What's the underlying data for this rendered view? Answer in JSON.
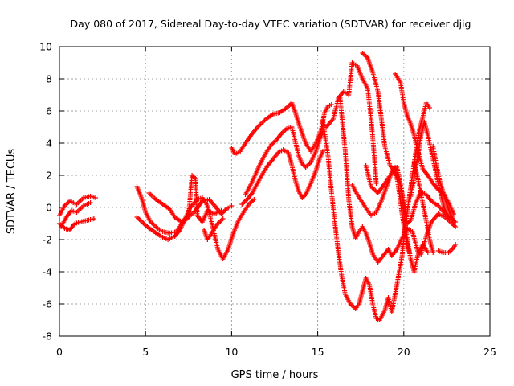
{
  "chart_data": {
    "type": "scatter",
    "title": "Day 080 of 2017, Sidereal Day-to-day VTEC variation (SDTVAR) for receiver djig",
    "xlabel": "GPS time / hours",
    "ylabel": "SDTVAR / TECUs",
    "xlim": [
      0,
      25
    ],
    "ylim": [
      -8,
      10
    ],
    "xticks": [
      "0",
      "5",
      "10",
      "15",
      "20",
      "25"
    ],
    "yticks": [
      "-8",
      "-6",
      "-4",
      "-2",
      "0",
      "2",
      "4",
      "6",
      "8",
      "10"
    ],
    "grid": true,
    "marker": "+",
    "color": "#ff0000",
    "series": [
      {
        "points": [
          [
            0.0,
            -0.5
          ],
          [
            0.3,
            0.1
          ],
          [
            0.6,
            0.4
          ],
          [
            1.0,
            0.2
          ],
          [
            1.4,
            0.6
          ],
          [
            1.8,
            0.7
          ],
          [
            2.1,
            0.6
          ]
        ]
      },
      {
        "points": [
          [
            0.0,
            -1.0
          ],
          [
            0.3,
            -1.3
          ],
          [
            0.6,
            -1.4
          ],
          [
            0.9,
            -1.0
          ],
          [
            1.2,
            -0.9
          ],
          [
            1.6,
            -0.8
          ],
          [
            2.0,
            -0.7
          ]
        ]
      },
      {
        "points": [
          [
            0.1,
            -1.2
          ],
          [
            0.4,
            -0.6
          ],
          [
            0.7,
            -0.2
          ],
          [
            1.0,
            -0.3
          ],
          [
            1.4,
            0.1
          ],
          [
            1.8,
            0.3
          ]
        ]
      },
      {
        "points": [
          [
            4.5,
            1.3
          ],
          [
            4.8,
            0.5
          ],
          [
            5.0,
            -0.3
          ],
          [
            5.3,
            -0.9
          ],
          [
            5.7,
            -1.3
          ],
          [
            6.0,
            -1.5
          ],
          [
            6.4,
            -1.6
          ],
          [
            6.8,
            -1.5
          ],
          [
            7.1,
            -1.0
          ],
          [
            7.5,
            -0.6
          ],
          [
            7.9,
            -0.2
          ],
          [
            8.3,
            0.4
          ],
          [
            8.7,
            0.5
          ],
          [
            9.1,
            0.0
          ],
          [
            9.4,
            -0.4
          ],
          [
            9.7,
            -0.1
          ],
          [
            10.0,
            0.1
          ]
        ]
      },
      {
        "points": [
          [
            4.5,
            -0.6
          ],
          [
            4.8,
            -0.9
          ],
          [
            5.1,
            -1.2
          ],
          [
            5.5,
            -1.5
          ],
          [
            5.9,
            -1.8
          ],
          [
            6.3,
            -2.0
          ],
          [
            6.7,
            -1.8
          ],
          [
            7.0,
            -1.4
          ],
          [
            7.3,
            -0.7
          ],
          [
            7.6,
            0.0
          ],
          [
            8.0,
            0.5
          ],
          [
            8.3,
            0.6
          ],
          [
            8.6,
            0.1
          ],
          [
            8.9,
            -1.2
          ],
          [
            9.2,
            -2.6
          ],
          [
            9.5,
            -3.2
          ],
          [
            9.8,
            -2.6
          ],
          [
            10.1,
            -1.6
          ],
          [
            10.4,
            -0.8
          ],
          [
            10.7,
            -0.3
          ],
          [
            11.0,
            0.2
          ],
          [
            11.3,
            0.5
          ]
        ]
      },
      {
        "points": [
          [
            5.2,
            0.9
          ],
          [
            5.6,
            0.5
          ],
          [
            6.0,
            0.2
          ],
          [
            6.4,
            -0.1
          ],
          [
            6.7,
            -0.6
          ],
          [
            7.1,
            -0.9
          ],
          [
            7.5,
            -0.5
          ],
          [
            7.7,
            2.0
          ],
          [
            7.9,
            1.8
          ],
          [
            8.0,
            -0.5
          ],
          [
            8.3,
            -0.9
          ],
          [
            8.6,
            -0.2
          ],
          [
            9.0,
            -0.4
          ],
          [
            9.4,
            -0.2
          ]
        ]
      },
      {
        "points": [
          [
            8.4,
            -1.4
          ],
          [
            8.6,
            -2.0
          ],
          [
            8.9,
            -1.5
          ],
          [
            9.2,
            -1.0
          ],
          [
            9.5,
            -0.7
          ]
        ]
      },
      {
        "points": [
          [
            10.0,
            3.7
          ],
          [
            10.2,
            3.3
          ],
          [
            10.5,
            3.5
          ],
          [
            10.8,
            4.0
          ],
          [
            11.2,
            4.6
          ],
          [
            11.6,
            5.1
          ],
          [
            12.0,
            5.5
          ],
          [
            12.4,
            5.8
          ],
          [
            12.8,
            5.9
          ],
          [
            13.2,
            6.2
          ],
          [
            13.5,
            6.5
          ],
          [
            13.7,
            5.9
          ],
          [
            14.0,
            4.9
          ],
          [
            14.3,
            4.0
          ],
          [
            14.6,
            3.5
          ],
          [
            14.9,
            4.0
          ],
          [
            15.2,
            4.8
          ],
          [
            15.4,
            5.9
          ],
          [
            15.6,
            6.3
          ],
          [
            15.8,
            6.4
          ]
        ]
      },
      {
        "points": [
          [
            10.8,
            0.8
          ],
          [
            11.1,
            1.4
          ],
          [
            11.4,
            2.1
          ],
          [
            11.7,
            2.8
          ],
          [
            12.0,
            3.4
          ],
          [
            12.3,
            3.9
          ],
          [
            12.6,
            4.2
          ],
          [
            12.9,
            4.6
          ],
          [
            13.2,
            4.9
          ],
          [
            13.5,
            5.0
          ],
          [
            13.7,
            4.1
          ],
          [
            13.9,
            3.2
          ],
          [
            14.1,
            2.7
          ],
          [
            14.3,
            2.5
          ],
          [
            14.6,
            2.8
          ],
          [
            14.9,
            3.5
          ],
          [
            15.1,
            4.2
          ],
          [
            15.3,
            4.7
          ]
        ]
      },
      {
        "points": [
          [
            10.6,
            0.2
          ],
          [
            10.9,
            0.5
          ],
          [
            11.2,
            0.9
          ],
          [
            11.5,
            1.5
          ],
          [
            11.8,
            2.1
          ],
          [
            12.1,
            2.6
          ],
          [
            12.4,
            3.0
          ],
          [
            12.7,
            3.4
          ],
          [
            13.0,
            3.6
          ],
          [
            13.3,
            3.4
          ],
          [
            13.5,
            2.6
          ],
          [
            13.7,
            1.7
          ],
          [
            13.9,
            1.0
          ],
          [
            14.1,
            0.6
          ],
          [
            14.3,
            0.8
          ],
          [
            14.6,
            1.5
          ],
          [
            14.9,
            2.3
          ],
          [
            15.1,
            3.0
          ],
          [
            15.3,
            3.5
          ]
        ]
      },
      {
        "points": [
          [
            15.5,
            5.0
          ],
          [
            15.9,
            5.5
          ],
          [
            16.2,
            6.8
          ],
          [
            16.5,
            7.2
          ],
          [
            16.8,
            7.0
          ],
          [
            17.0,
            9.0
          ],
          [
            17.3,
            8.8
          ],
          [
            17.6,
            8.0
          ],
          [
            17.9,
            7.4
          ],
          [
            18.0,
            6.5
          ],
          [
            18.1,
            5.5
          ],
          [
            18.2,
            4.3
          ],
          [
            18.3,
            3.0
          ],
          [
            18.4,
            1.5
          ]
        ]
      },
      {
        "points": [
          [
            15.3,
            5.4
          ],
          [
            15.6,
            3.2
          ],
          [
            15.8,
            1.0
          ],
          [
            16.0,
            -1.0
          ],
          [
            16.2,
            -2.8
          ],
          [
            16.4,
            -4.3
          ],
          [
            16.6,
            -5.4
          ],
          [
            16.9,
            -6.0
          ],
          [
            17.2,
            -6.3
          ],
          [
            17.4,
            -6.0
          ],
          [
            17.6,
            -5.2
          ],
          [
            17.8,
            -4.4
          ],
          [
            18.0,
            -4.8
          ],
          [
            18.2,
            -6.0
          ],
          [
            18.4,
            -6.9
          ],
          [
            18.6,
            -7.0
          ],
          [
            18.9,
            -6.4
          ],
          [
            19.1,
            -5.6
          ],
          [
            19.3,
            -6.5
          ],
          [
            19.6,
            -4.8
          ],
          [
            19.9,
            -3.0
          ],
          [
            20.1,
            -1.0
          ],
          [
            20.3,
            0.5
          ],
          [
            20.5,
            2.0
          ],
          [
            20.7,
            3.5
          ],
          [
            20.9,
            4.8
          ],
          [
            21.1,
            5.6
          ],
          [
            21.3,
            6.5
          ],
          [
            21.5,
            6.2
          ]
        ]
      },
      {
        "points": [
          [
            16.3,
            6.8
          ],
          [
            16.6,
            3.5
          ],
          [
            16.8,
            0.5
          ],
          [
            17.0,
            -1.2
          ],
          [
            17.2,
            -1.9
          ],
          [
            17.4,
            -1.5
          ],
          [
            17.6,
            -1.2
          ],
          [
            17.8,
            -1.6
          ],
          [
            18.0,
            -2.2
          ],
          [
            18.2,
            -2.9
          ],
          [
            18.5,
            -3.4
          ],
          [
            18.8,
            -3.0
          ],
          [
            19.1,
            -2.6
          ],
          [
            19.3,
            -3.0
          ],
          [
            19.6,
            -2.6
          ],
          [
            19.9,
            -1.9
          ],
          [
            20.2,
            -1.3
          ],
          [
            20.5,
            -1.5
          ],
          [
            20.8,
            -2.7
          ],
          [
            21.0,
            -2.9
          ],
          [
            21.3,
            -1.8
          ],
          [
            21.6,
            -0.9
          ],
          [
            22.0,
            -0.4
          ],
          [
            22.4,
            -0.6
          ],
          [
            22.8,
            -1.0
          ],
          [
            23.0,
            -1.2
          ]
        ]
      },
      {
        "points": [
          [
            17.0,
            1.4
          ],
          [
            17.3,
            0.8
          ],
          [
            17.6,
            0.3
          ],
          [
            17.9,
            -0.2
          ],
          [
            18.1,
            -0.5
          ],
          [
            18.4,
            -0.3
          ],
          [
            18.7,
            0.4
          ],
          [
            19.0,
            1.3
          ],
          [
            19.3,
            2.2
          ],
          [
            19.6,
            2.5
          ],
          [
            19.8,
            1.5
          ],
          [
            20.0,
            0.3
          ],
          [
            20.2,
            -1.0
          ],
          [
            20.4,
            -0.8
          ],
          [
            20.7,
            0.3
          ],
          [
            21.0,
            1.0
          ],
          [
            21.3,
            0.8
          ],
          [
            21.6,
            0.4
          ],
          [
            22.0,
            0.1
          ],
          [
            22.5,
            -0.5
          ],
          [
            23.0,
            -0.9
          ]
        ]
      },
      {
        "points": [
          [
            17.6,
            9.6
          ],
          [
            17.9,
            9.3
          ],
          [
            18.2,
            8.4
          ],
          [
            18.5,
            7.2
          ],
          [
            18.7,
            5.5
          ],
          [
            18.9,
            3.8
          ],
          [
            19.2,
            2.6
          ],
          [
            19.5,
            2.2
          ],
          [
            19.8,
            1.5
          ],
          [
            20.0,
            -0.2
          ],
          [
            20.2,
            -2.0
          ],
          [
            20.4,
            -3.2
          ],
          [
            20.6,
            -4.0
          ],
          [
            20.8,
            -3.0
          ],
          [
            21.1,
            -2.3
          ],
          [
            21.4,
            -2.8
          ]
        ]
      },
      {
        "points": [
          [
            19.5,
            8.3
          ],
          [
            19.8,
            7.8
          ],
          [
            20.0,
            6.5
          ],
          [
            20.2,
            5.7
          ],
          [
            20.4,
            5.2
          ],
          [
            20.6,
            4.5
          ],
          [
            20.8,
            3.6
          ],
          [
            21.1,
            2.4
          ],
          [
            21.4,
            2.0
          ],
          [
            21.7,
            1.5
          ],
          [
            22.0,
            1.1
          ],
          [
            22.3,
            0.9
          ],
          [
            22.6,
            0.3
          ],
          [
            22.9,
            -0.4
          ]
        ]
      },
      {
        "points": [
          [
            17.8,
            2.6
          ],
          [
            18.1,
            1.3
          ],
          [
            18.5,
            0.9
          ],
          [
            18.9,
            1.5
          ],
          [
            19.2,
            2.0
          ],
          [
            19.5,
            2.5
          ],
          [
            19.7,
            1.2
          ],
          [
            19.9,
            -0.4
          ],
          [
            20.1,
            -1.8
          ],
          [
            20.3,
            -2.7
          ]
        ]
      },
      {
        "points": [
          [
            20.4,
            0.7
          ],
          [
            20.6,
            1.8
          ],
          [
            20.8,
            3.1
          ],
          [
            21.0,
            4.5
          ],
          [
            21.2,
            5.3
          ],
          [
            21.4,
            4.5
          ],
          [
            21.6,
            3.5
          ],
          [
            21.8,
            2.5
          ],
          [
            22.0,
            1.5
          ],
          [
            22.2,
            0.6
          ],
          [
            22.4,
            -0.2
          ],
          [
            22.6,
            -0.6
          ]
        ]
      },
      {
        "points": [
          [
            21.7,
            3.8
          ],
          [
            21.9,
            2.6
          ],
          [
            22.1,
            1.6
          ],
          [
            22.3,
            0.9
          ],
          [
            22.5,
            0.2
          ],
          [
            22.7,
            -0.4
          ],
          [
            22.9,
            -0.8
          ]
        ]
      },
      {
        "points": [
          [
            20.6,
            2.8
          ],
          [
            20.9,
            1.4
          ],
          [
            21.1,
            0.3
          ],
          [
            21.3,
            -0.8
          ],
          [
            21.5,
            -2.0
          ],
          [
            21.7,
            -2.8
          ]
        ]
      },
      {
        "points": [
          [
            22.0,
            -2.7
          ],
          [
            22.3,
            -2.8
          ],
          [
            22.6,
            -2.8
          ],
          [
            22.9,
            -2.5
          ],
          [
            23.0,
            -2.3
          ]
        ]
      }
    ]
  }
}
